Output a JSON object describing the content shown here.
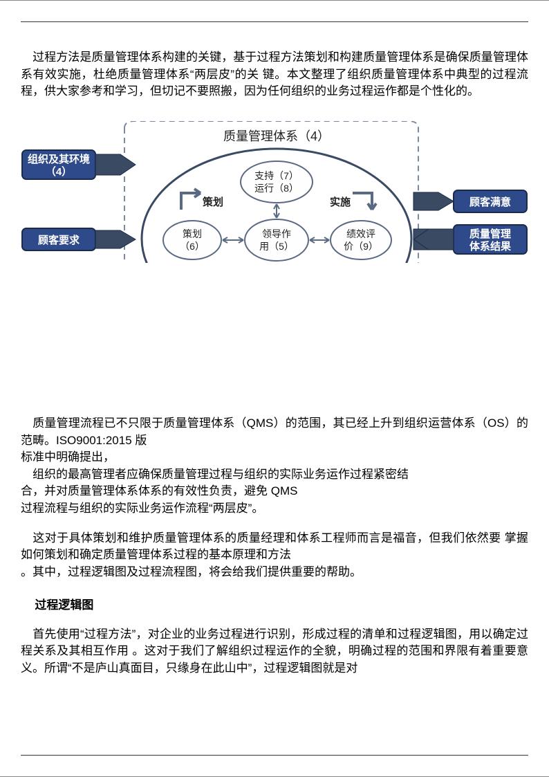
{
  "para1": "　过程方法是质量管理体系构建的关键，基于过程方法策划和构建质量管理体系是确保质量管理体系有效实施，杜绝质量管理体系“两层皮”的关 键。本文整理了组织质量管理体系中典型的过程流程，供大家参考和学习，但切记不要照搬，因为任何组织的业务过程运作都是个性化的。",
  "para2": "　质量管理流程已不只限于质量管理体系（QMS）的范围，其已经上升到组织运营体系（OS）的范畴。ISO9001:2015 版",
  "para2b": "标准中明确提出，",
  "para2c": "　组织的最高管理者应确保质量管理过程与组织的实际业务运作过程紧密结",
  "para2d": "合，并对质量管理体系体系的有效性负责，避免 QMS",
  "para2e": "过程流程与组织的实际业务运作流程“两层皮”。",
  "para3": "　这对于具体策划和维护质量管理体系的质量经理和体系工程师而言是福音，但我们依然要  掌握如何策划和确定质量管理体系过程的基本原理和方法",
  "para3b": "。其中，过程逻辑图及过程流程图，将会给我们提供重要的帮助。",
  "heading1": "过程逻辑图",
  "para4": "　首先使用“过程方法”，对企业的业务过程进行识别，形成过程的清单和过程逻辑图，用以确定过程关系及其相互作用  。这对于我们了解组织过程运作的全貌，明确过程的范围和界限有着重要意义。所谓“不是庐山真面目，只缘身在此山中”，过程逻辑图就是对",
  "diagram": {
    "title": "质量管理体系（4）",
    "left_inputs": [
      {
        "line1": "组织及其环境",
        "line2": "（4）"
      },
      {
        "line1": "顾客要求",
        "line2": ""
      }
    ],
    "right_outputs": [
      {
        "line1": "顾客满意",
        "line2": ""
      },
      {
        "line1": "质量管理",
        "line2": "体系结果"
      }
    ],
    "center_top": {
      "line1": "支持（7）",
      "line2": "运行（8）"
    },
    "center_left": {
      "line1": "策划",
      "line2": "（6）"
    },
    "center_mid": {
      "line1": "领导作",
      "line2": "用（5）"
    },
    "center_right": {
      "line1": "绩效评",
      "line2": "价（9）"
    },
    "label_plan": "策划",
    "label_do": "实施",
    "colors": {
      "input_box_fill": "#2f4a8a",
      "input_box_text": "#ffffff",
      "arrow_fill": "#3a4a63",
      "ellipse_stroke": "#3a4a63",
      "node_fill": "#fefefe",
      "node_stroke": "#5a6a83",
      "text": "#222222",
      "dash_stroke": "#7a88a0"
    },
    "fonts": {
      "title_size": 18,
      "box_size": 15,
      "node_size": 14,
      "label_size": 15
    }
  }
}
